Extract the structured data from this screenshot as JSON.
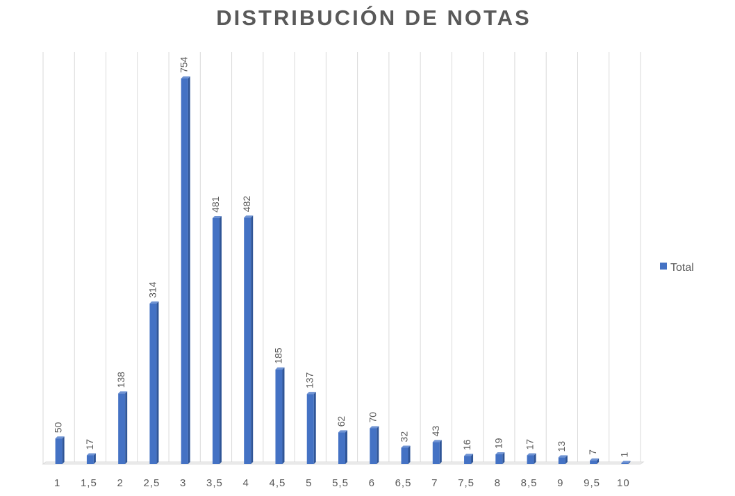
{
  "chart_data": {
    "type": "bar",
    "title": "DISTRIBUCIÓN DE NOTAS",
    "categories": [
      "1",
      "1,5",
      "2",
      "2,5",
      "3",
      "3,5",
      "4",
      "4,5",
      "5",
      "5,5",
      "6",
      "6,5",
      "7",
      "7,5",
      "8",
      "8,5",
      "9",
      "9,5",
      "10"
    ],
    "series": [
      {
        "name": "Total",
        "values": [
          50,
          17,
          138,
          314,
          754,
          481,
          482,
          185,
          137,
          62,
          70,
          32,
          43,
          16,
          19,
          17,
          13,
          7,
          1
        ],
        "color": "#4472C4"
      }
    ],
    "xlabel": "",
    "ylabel": "",
    "ylim": [
      0,
      754
    ],
    "grid": "vertical",
    "legend_position": "right",
    "data_labels": true,
    "colors": {
      "bar": "#4472C4",
      "bar_dark": "#2F5597",
      "grid": "#d9d9d9",
      "text": "#595959",
      "title": "#595959"
    }
  }
}
